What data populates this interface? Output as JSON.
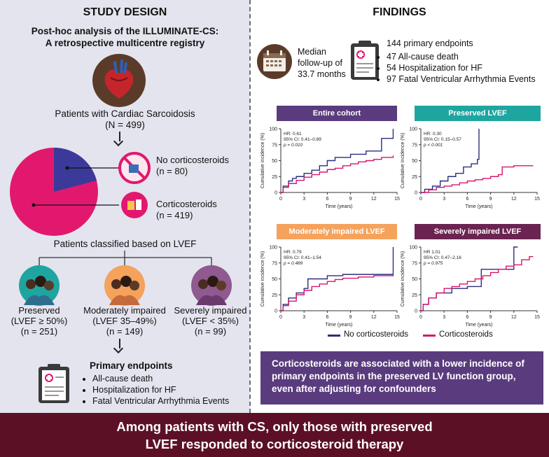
{
  "left": {
    "title": "STUDY DESIGN",
    "subtitle_line1": "Post-hoc analysis of the ILLUMINATE-CS:",
    "subtitle_line2": "A retrospective multicentre registry",
    "patients_label": "Patients with Cardiac Sarcoidosis",
    "patients_n": "(N = 499)",
    "no_cs_label": "No corticosteroids",
    "no_cs_n": "(n = 80)",
    "cs_label": "Corticosteroids",
    "cs_n": "(n = 419)",
    "classified_label": "Patients classified based on LVEF",
    "groups": [
      {
        "name": "Preserved",
        "range": "(LVEF ≥ 50%)",
        "n": "(n = 251)",
        "color": "#1fa5a0"
      },
      {
        "name": "Moderately impaired",
        "range": "(LVEF 35–49%)",
        "n": "(n = 149)",
        "color": "#f5a25d"
      },
      {
        "name": "Severely impaired",
        "range": "(LVEF < 35%)",
        "n": "(n = 99)",
        "color": "#8e5a8f"
      }
    ],
    "endpoints_title": "Primary endpoints",
    "endpoints": [
      "All-cause death",
      "Hospitalization for HF",
      "Fatal Ventricular Arrhythmia Events"
    ]
  },
  "right": {
    "title": "FINDINGS",
    "followup_line1": "Median",
    "followup_line2": "follow-up of",
    "followup_line3": "33.7 months",
    "endpoints_count": "144 primary endpoints",
    "endpoint_items": [
      "47 All-cause death",
      "54 Hospitalization for HF",
      "97 Fatal Ventricular Arrhythmia Events"
    ],
    "legend_no": "No corticosteroids",
    "legend_cs": "Corticosteroids",
    "note": "Corticosteroids are associated with a lower incidence of primary endpoints in the preserved LV function group, even after adjusting for confounders"
  },
  "footer_line1": "Among patients with CS, only those with preserved",
  "footer_line2": "LVEF responded to corticosteroid therapy",
  "colors": {
    "no_cs": "#2b2f7d",
    "cs": "#d9156e"
  },
  "chart_data": [
    {
      "type": "line",
      "title": "Entire cohort",
      "label_color": "#5a3b7e",
      "hr": "HR: 0.61",
      "ci": "95% CI: 0.41–0.89",
      "p": "p = 0.010",
      "xlabel": "Time (years)",
      "ylabel": "Cumulative incidence (%)",
      "xticks": [
        "0",
        "3",
        "6",
        "9",
        "12",
        "15"
      ],
      "yticks": [
        "0",
        "25",
        "50",
        "75",
        "100"
      ],
      "xlim": [
        0,
        15
      ],
      "ylim": [
        0,
        100
      ],
      "series": [
        {
          "name": "No corticosteroids",
          "x": [
            0,
            0.3,
            1,
            1.5,
            2,
            3,
            4,
            5,
            6,
            7,
            9,
            11,
            13,
            14.5,
            14.5
          ],
          "y": [
            0,
            10,
            18,
            22,
            25,
            30,
            35,
            42,
            50,
            55,
            60,
            65,
            85,
            85,
            100
          ]
        },
        {
          "name": "Corticosteroids",
          "x": [
            0,
            0.3,
            1,
            2,
            3,
            4,
            5,
            6,
            7,
            8,
            9,
            10,
            11,
            12,
            13,
            14.5
          ],
          "y": [
            0,
            8,
            14,
            19,
            24,
            28,
            32,
            36,
            38,
            42,
            45,
            48,
            50,
            52,
            55,
            58
          ]
        }
      ]
    },
    {
      "type": "line",
      "title": "Preserved LVEF",
      "label_color": "#1fa5a0",
      "hr": "HR: 0.30",
      "ci": "95% CI: 0.15–0.57",
      "p": "p < 0.001",
      "xlabel": "Time (years)",
      "ylabel": "Cumulative incidence (%)",
      "xticks": [
        "0",
        "3",
        "6",
        "9",
        "12",
        "15"
      ],
      "yticks": [
        "0",
        "25",
        "50",
        "75",
        "100"
      ],
      "xlim": [
        0,
        15
      ],
      "ylim": [
        0,
        100
      ],
      "series": [
        {
          "name": "No corticosteroids",
          "x": [
            0,
            0.5,
            1.5,
            2.5,
            3.5,
            4.5,
            5.5,
            6.5,
            7.3,
            7.5,
            7.5
          ],
          "y": [
            0,
            5,
            10,
            18,
            25,
            30,
            40,
            45,
            52,
            52,
            100
          ]
        },
        {
          "name": "Corticosteroids",
          "x": [
            0,
            1,
            2,
            3,
            4,
            5,
            6,
            7,
            8,
            9,
            10,
            10.5,
            12,
            14.5
          ],
          "y": [
            0,
            4,
            8,
            10,
            12,
            15,
            18,
            20,
            22,
            25,
            28,
            40,
            42,
            42
          ]
        }
      ]
    },
    {
      "type": "line",
      "title": "Moderately impaired LVEF",
      "label_color": "#f5a25d",
      "hr": "HR: 0.79",
      "ci": "95% CI: 0.41–1.54",
      "p": "p = 0.489",
      "xlabel": "Time (years)",
      "ylabel": "Cumulative incidence (%)",
      "xticks": [
        "0",
        "3",
        "6",
        "9",
        "12",
        "15"
      ],
      "yticks": [
        "0",
        "25",
        "50",
        "75",
        "100"
      ],
      "xlim": [
        0,
        15
      ],
      "ylim": [
        0,
        100
      ],
      "series": [
        {
          "name": "No corticosteroids",
          "x": [
            0,
            0.3,
            1,
            2,
            3,
            3.5,
            6,
            8,
            10,
            12,
            14.5,
            14.5
          ],
          "y": [
            0,
            10,
            20,
            28,
            35,
            50,
            55,
            57,
            57,
            57,
            57,
            100
          ]
        },
        {
          "name": "Corticosteroids",
          "x": [
            0,
            0.3,
            1,
            2,
            3,
            4,
            5,
            6,
            7,
            8,
            10,
            12,
            14.5
          ],
          "y": [
            0,
            8,
            15,
            25,
            32,
            38,
            42,
            46,
            49,
            51,
            53,
            55,
            56
          ]
        }
      ]
    },
    {
      "type": "line",
      "title": "Severely impaired LVEF",
      "label_color": "#6b2451",
      "hr": "HR 1.01",
      "ci": "95% CI: 0.47–2.16",
      "p": "p = 0.975",
      "xlabel": "Time (years)",
      "ylabel": "Cumulative incidence (%)",
      "xticks": [
        "0",
        "3",
        "6",
        "9",
        "12",
        "15"
      ],
      "yticks": [
        "0",
        "25",
        "50",
        "75",
        "100"
      ],
      "xlim": [
        0,
        15
      ],
      "ylim": [
        0,
        100
      ],
      "series": [
        {
          "name": "No corticosteroids",
          "x": [
            0,
            0.3,
            1,
            2,
            4,
            6,
            7.8,
            7.8,
            10,
            12,
            12,
            12.5
          ],
          "y": [
            0,
            10,
            20,
            28,
            35,
            38,
            38,
            65,
            65,
            65,
            100,
            100
          ]
        },
        {
          "name": "Corticosteroids",
          "x": [
            0,
            0.3,
            1,
            2,
            3,
            4,
            5,
            6,
            7,
            8,
            9,
            10,
            11,
            12,
            13,
            14,
            14.5
          ],
          "y": [
            0,
            10,
            20,
            28,
            35,
            38,
            42,
            46,
            50,
            55,
            60,
            65,
            70,
            72,
            80,
            85,
            85
          ]
        }
      ]
    }
  ]
}
